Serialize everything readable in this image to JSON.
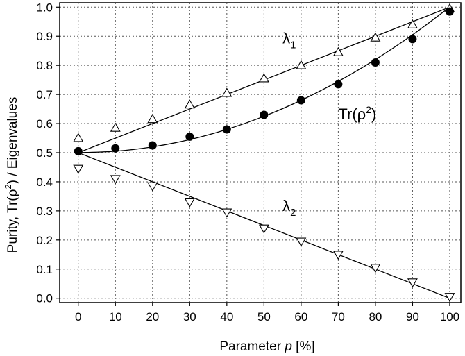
{
  "chart_data": {
    "type": "scatter",
    "xlabel": "Parameter p [%]",
    "xlabel_prefix": "Parameter ",
    "xlabel_var": "p",
    "xlabel_unit": " [%]",
    "ylabel": "Purity, Tr(ρ²)  /  Eigenvalues",
    "ylabel_parts": {
      "a": "Purity, Tr(ρ",
      "sup": "2",
      "b": ")  /  Eigenvalues"
    },
    "xlim": [
      -5,
      103
    ],
    "ylim": [
      -0.015,
      1.015
    ],
    "xticks": [
      "0",
      "10",
      "20",
      "30",
      "40",
      "50",
      "60",
      "70",
      "80",
      "90",
      "100"
    ],
    "yticks": [
      "0.0",
      "0.1",
      "0.2",
      "0.3",
      "0.4",
      "0.5",
      "0.6",
      "0.7",
      "0.8",
      "0.9",
      "1.0"
    ],
    "grid": true,
    "x": [
      0,
      10,
      20,
      30,
      40,
      50,
      60,
      70,
      80,
      90,
      100
    ],
    "series": [
      {
        "name": "λ1",
        "marker": "triangle-up",
        "values": [
          0.55,
          0.585,
          0.615,
          0.665,
          0.705,
          0.755,
          0.8,
          0.845,
          0.895,
          0.94,
          0.995
        ]
      },
      {
        "name": "Tr(ρ²)",
        "marker": "filled-circle",
        "values": [
          0.505,
          0.515,
          0.525,
          0.555,
          0.58,
          0.63,
          0.68,
          0.735,
          0.81,
          0.89,
          0.985
        ]
      },
      {
        "name": "λ2",
        "marker": "triangle-down",
        "values": [
          0.445,
          0.41,
          0.385,
          0.33,
          0.295,
          0.24,
          0.195,
          0.15,
          0.105,
          0.055,
          0.005
        ]
      }
    ],
    "fits": [
      {
        "name": "λ1 fit",
        "x": [
          0,
          100
        ],
        "y": [
          0.5,
          1.0
        ]
      },
      {
        "name": "Tr(ρ²) fit",
        "x": [
          0,
          10,
          20,
          30,
          40,
          50,
          60,
          70,
          80,
          90,
          100
        ],
        "y": [
          0.5,
          0.505,
          0.52,
          0.545,
          0.58,
          0.625,
          0.68,
          0.745,
          0.82,
          0.905,
          1.0
        ]
      },
      {
        "name": "λ2 fit",
        "x": [
          0,
          100
        ],
        "y": [
          0.5,
          0.0
        ]
      }
    ],
    "annotations": [
      {
        "base": "λ",
        "sub": "1",
        "x": 55,
        "y": 0.875
      },
      {
        "base": "Tr(ρ",
        "sup": "2",
        "tail": ")",
        "x": 70,
        "y": 0.615
      },
      {
        "base": "λ",
        "sub": "2",
        "x": 55,
        "y": 0.3
      }
    ]
  }
}
